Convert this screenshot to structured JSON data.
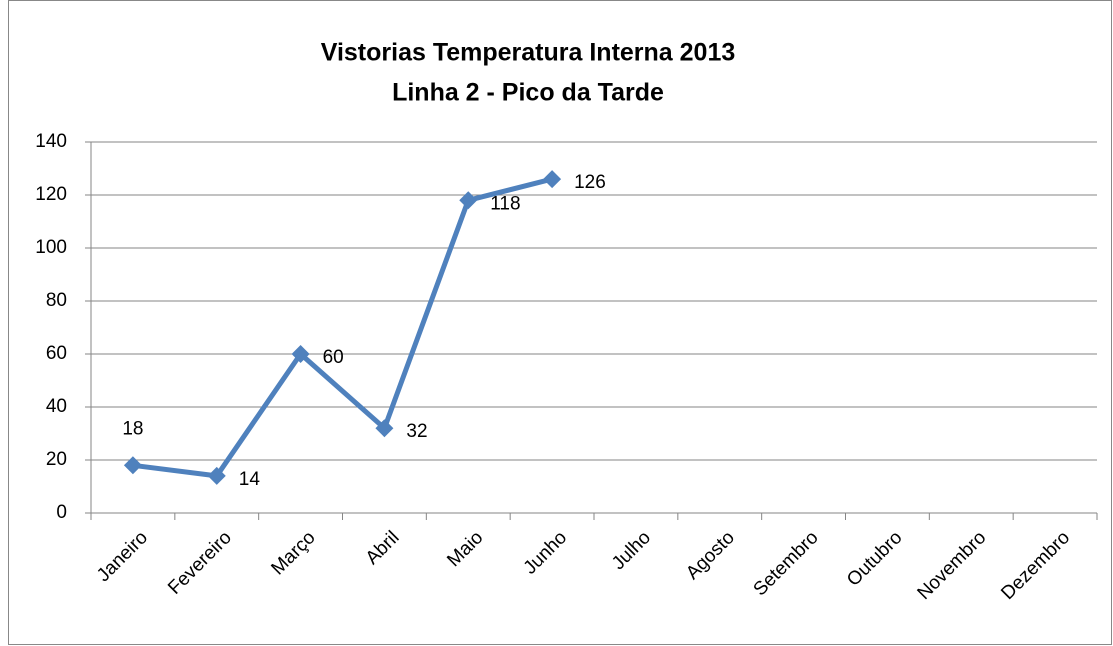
{
  "chart_data": {
    "type": "line",
    "title": "Vistorias Temperatura Interna 2013",
    "subtitle": "Linha 2 - Pico da Tarde",
    "categories": [
      "Janeiro",
      "Fevereiro",
      "Março",
      "Abril",
      "Maio",
      "Junho",
      "Julho",
      "Agosto",
      "Setembro",
      "Outubro",
      "Novembro",
      "Dezembro"
    ],
    "series": [
      {
        "name": "Vistorias",
        "color": "#4f81bd",
        "values": [
          18,
          14,
          60,
          32,
          118,
          126,
          null,
          null,
          null,
          null,
          null,
          null
        ]
      }
    ],
    "ylim": [
      0,
      140
    ],
    "yticks": [
      0,
      20,
      40,
      60,
      80,
      100,
      120,
      140
    ],
    "grid": true
  }
}
